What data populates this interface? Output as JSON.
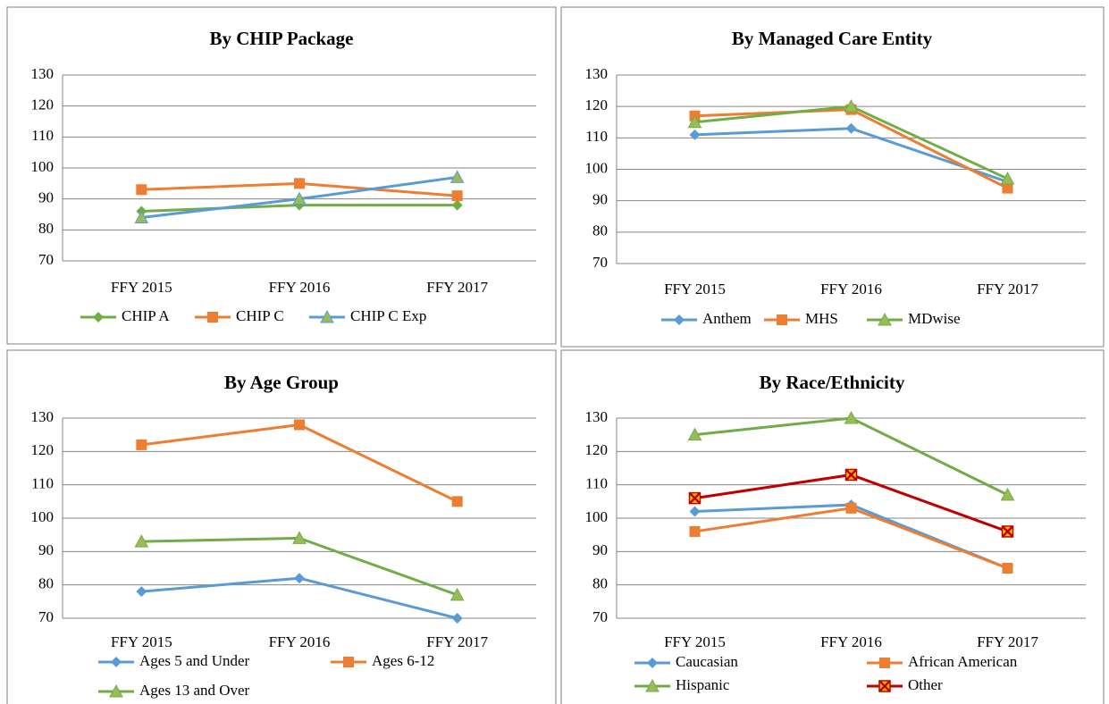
{
  "chart_data": [
    {
      "type": "line",
      "title": "By CHIP Package",
      "categories": [
        "FFY 2015",
        "FFY 2016",
        "FFY 2017"
      ],
      "series": [
        {
          "name": "CHIP A",
          "color": "#70ad47",
          "marker": "diamond",
          "values": [
            86,
            88,
            88
          ]
        },
        {
          "name": "CHIP C",
          "color": "#ed7d31",
          "marker": "square",
          "values": [
            93,
            95,
            91
          ]
        },
        {
          "name": "CHIP C Exp",
          "color": "#5b9bd5",
          "marker": "triangle",
          "values": [
            84,
            90,
            97
          ]
        }
      ],
      "ylim": [
        70,
        130
      ],
      "yticks": [
        70,
        80,
        90,
        100,
        110,
        120,
        130
      ],
      "grid": true
    },
    {
      "type": "line",
      "title": "By Managed Care Entity",
      "categories": [
        "FFY 2015",
        "FFY 2016",
        "FFY 2017"
      ],
      "series": [
        {
          "name": "Anthem",
          "color": "#5b9bd5",
          "marker": "diamond",
          "values": [
            111,
            113,
            96
          ]
        },
        {
          "name": "MHS",
          "color": "#ed7d31",
          "marker": "square",
          "values": [
            117,
            119,
            94
          ]
        },
        {
          "name": "MDwise",
          "color": "#70ad47",
          "marker": "triangle",
          "values": [
            115,
            120,
            97
          ]
        }
      ],
      "ylim": [
        70,
        130
      ],
      "yticks": [
        70,
        80,
        90,
        100,
        110,
        120,
        130
      ],
      "grid": true
    },
    {
      "type": "line",
      "title": "By Age Group",
      "categories": [
        "FFY 2015",
        "FFY 2016",
        "FFY 2017"
      ],
      "series": [
        {
          "name": "Ages 5 and Under",
          "color": "#5b9bd5",
          "marker": "diamond",
          "values": [
            78,
            82,
            70
          ]
        },
        {
          "name": "Ages 6-12",
          "color": "#ed7d31",
          "marker": "square",
          "values": [
            122,
            128,
            105
          ]
        },
        {
          "name": "Ages 13 and Over",
          "color": "#70ad47",
          "marker": "triangle",
          "values": [
            93,
            94,
            77
          ]
        }
      ],
      "ylim": [
        70,
        130
      ],
      "yticks": [
        70,
        80,
        90,
        100,
        110,
        120,
        130
      ],
      "grid": true
    },
    {
      "type": "line",
      "title": "By Race/Ethnicity",
      "categories": [
        "FFY 2015",
        "FFY 2016",
        "FFY 2017"
      ],
      "series": [
        {
          "name": "Caucasian",
          "color": "#5b9bd5",
          "marker": "diamond",
          "values": [
            102,
            104,
            85
          ]
        },
        {
          "name": "African American",
          "color": "#ed7d31",
          "marker": "square",
          "values": [
            96,
            103,
            85
          ]
        },
        {
          "name": "Hispanic",
          "color": "#70ad47",
          "marker": "triangle",
          "values": [
            125,
            130,
            107
          ]
        },
        {
          "name": "Other",
          "color": "#c00000",
          "marker": "xsquare",
          "values": [
            106,
            113,
            96
          ]
        }
      ],
      "ylim": [
        70,
        130
      ],
      "yticks": [
        70,
        80,
        90,
        100,
        110,
        120,
        130
      ],
      "grid": true
    }
  ]
}
